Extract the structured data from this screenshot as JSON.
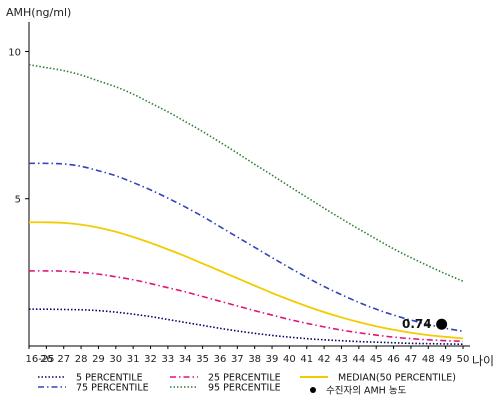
{
  "chart_data": {
    "type": "line",
    "ylabel": "AMH(ng/ml)",
    "xlabel": "나이",
    "x_ticks": [
      "16-25",
      "26",
      "27",
      "28",
      "29",
      "30",
      "31",
      "32",
      "33",
      "34",
      "35",
      "36",
      "37",
      "38",
      "39",
      "40",
      "41",
      "42",
      "43",
      "44",
      "45",
      "46",
      "47",
      "48",
      "49",
      "50"
    ],
    "x_values": [
      25,
      26,
      27,
      28,
      29,
      30,
      31,
      32,
      33,
      34,
      35,
      36,
      37,
      38,
      39,
      40,
      41,
      42,
      43,
      44,
      45,
      46,
      47,
      48,
      49,
      50
    ],
    "xlim": [
      25,
      50
    ],
    "ylim": [
      0,
      11
    ],
    "y_ticks": [
      5,
      10
    ],
    "grid": false,
    "legend_position": "bottom",
    "series": [
      {
        "name": "5 PERCENTILE",
        "color": "#000066",
        "dash": "dotted",
        "x": [
          25,
          26,
          27,
          28,
          29,
          30,
          31,
          32,
          33,
          34,
          35,
          36,
          37,
          38,
          39,
          40,
          41,
          42,
          43,
          44,
          45,
          46,
          47,
          48,
          49,
          50
        ],
        "y": [
          1.25,
          1.25,
          1.24,
          1.23,
          1.2,
          1.15,
          1.08,
          1.0,
          0.9,
          0.8,
          0.7,
          0.6,
          0.51,
          0.43,
          0.36,
          0.3,
          0.25,
          0.21,
          0.18,
          0.15,
          0.13,
          0.11,
          0.09,
          0.08,
          0.07,
          0.06
        ]
      },
      {
        "name": "25 PERCENTILE",
        "color": "#e0157a",
        "dash": "dashdot",
        "x": [
          25,
          26,
          27,
          28,
          29,
          30,
          31,
          32,
          33,
          34,
          35,
          36,
          37,
          38,
          39,
          40,
          41,
          42,
          43,
          44,
          45,
          46,
          47,
          48,
          49,
          50
        ],
        "y": [
          2.55,
          2.55,
          2.54,
          2.5,
          2.44,
          2.35,
          2.25,
          2.12,
          1.98,
          1.84,
          1.68,
          1.52,
          1.36,
          1.2,
          1.05,
          0.9,
          0.77,
          0.65,
          0.54,
          0.45,
          0.37,
          0.3,
          0.25,
          0.21,
          0.18,
          0.16
        ]
      },
      {
        "name": "MEDIAN(50 PERCENTILE)",
        "color": "#f2cc00",
        "dash": "solid",
        "x": [
          25,
          26,
          27,
          28,
          29,
          30,
          31,
          32,
          33,
          34,
          35,
          36,
          37,
          38,
          39,
          40,
          41,
          42,
          43,
          44,
          45,
          46,
          47,
          48,
          49,
          50
        ],
        "y": [
          4.2,
          4.2,
          4.18,
          4.12,
          4.02,
          3.88,
          3.7,
          3.5,
          3.28,
          3.05,
          2.8,
          2.55,
          2.3,
          2.05,
          1.8,
          1.57,
          1.35,
          1.15,
          0.97,
          0.81,
          0.67,
          0.55,
          0.45,
          0.37,
          0.31,
          0.26
        ]
      },
      {
        "name": "75 PERCENTILE",
        "color": "#3344bb",
        "dash": "dashdot",
        "x": [
          25,
          26,
          27,
          28,
          29,
          30,
          31,
          32,
          33,
          34,
          35,
          36,
          37,
          38,
          39,
          40,
          41,
          42,
          43,
          44,
          45,
          46,
          47,
          48,
          49,
          50
        ],
        "y": [
          6.2,
          6.2,
          6.18,
          6.1,
          5.95,
          5.78,
          5.55,
          5.3,
          5.02,
          4.72,
          4.4,
          4.05,
          3.7,
          3.35,
          3.0,
          2.66,
          2.33,
          2.02,
          1.74,
          1.48,
          1.25,
          1.05,
          0.88,
          0.73,
          0.6,
          0.5
        ]
      },
      {
        "name": "95 PERCENTILE",
        "color": "#2e7d32",
        "dash": "dotted",
        "x": [
          25,
          26,
          27,
          28,
          29,
          30,
          31,
          32,
          33,
          34,
          35,
          36,
          37,
          38,
          39,
          40,
          41,
          42,
          43,
          44,
          45,
          46,
          47,
          48,
          49,
          50
        ],
        "y": [
          9.55,
          9.45,
          9.35,
          9.2,
          9.0,
          8.8,
          8.55,
          8.25,
          7.95,
          7.62,
          7.28,
          6.92,
          6.55,
          6.17,
          5.8,
          5.42,
          5.05,
          4.68,
          4.32,
          3.97,
          3.63,
          3.3,
          3.0,
          2.72,
          2.45,
          2.2
        ]
      }
    ],
    "marker": {
      "name": "수진자의 AMH 농도",
      "x": 49,
      "y": 0.74,
      "label": "0.74",
      "color": "#000000"
    }
  }
}
